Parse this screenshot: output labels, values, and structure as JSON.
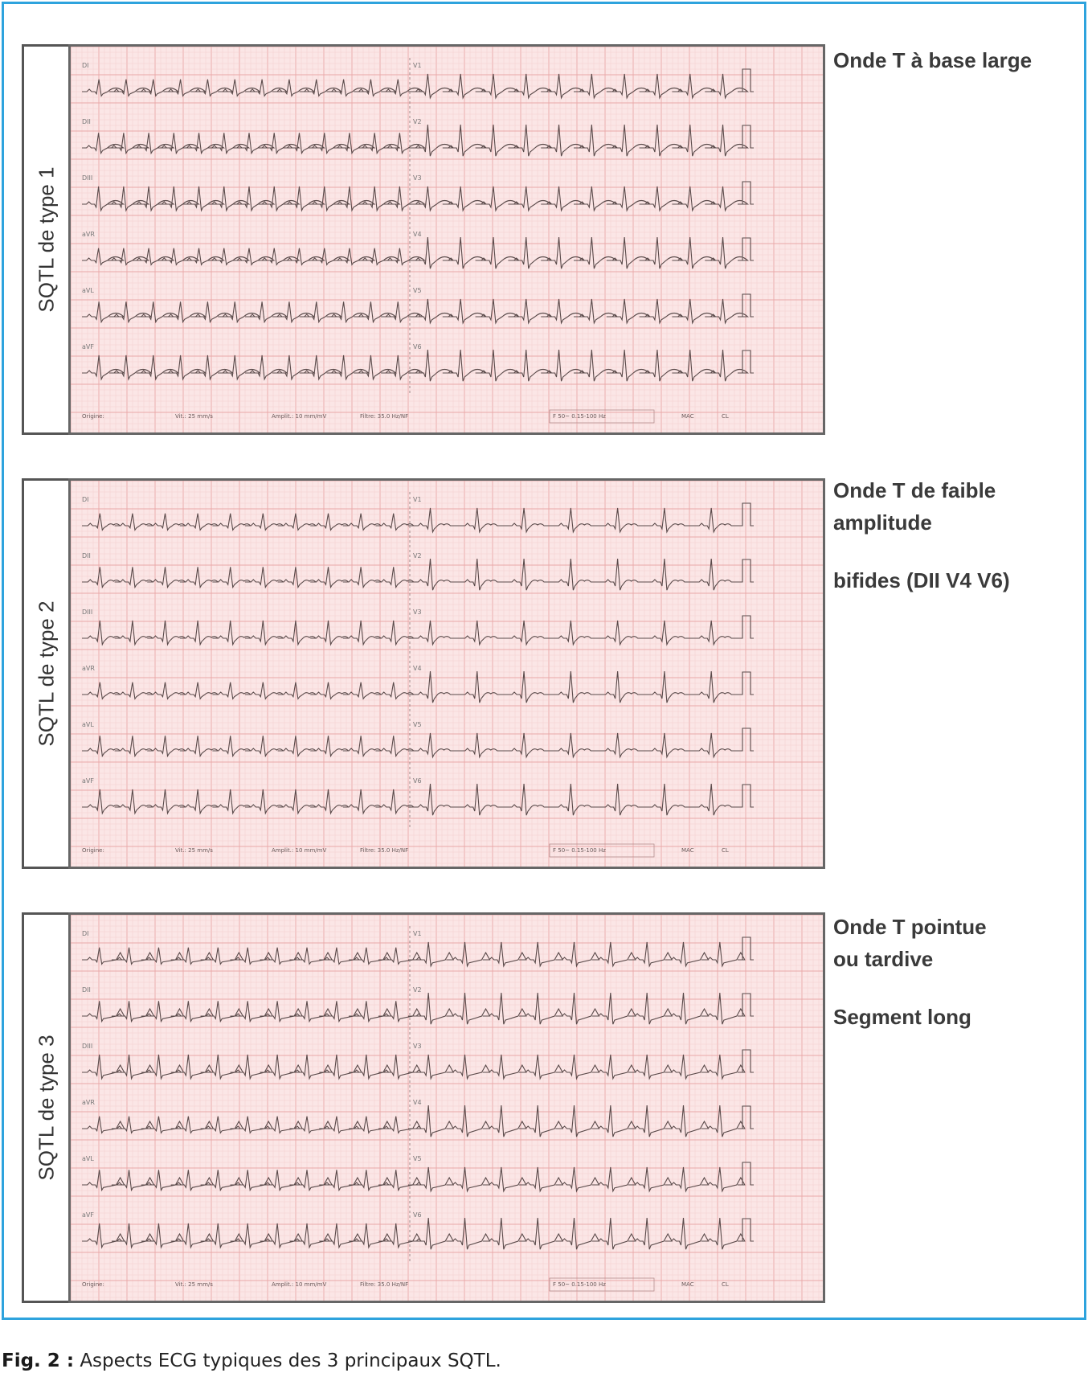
{
  "panels": [
    {
      "label": "SQTL de type 1",
      "notes": [
        "Onde T à base large"
      ],
      "leads_left": [
        "DI",
        "DII",
        "DIII",
        "aVR",
        "aVL",
        "aVF"
      ],
      "leads_right": [
        "V1",
        "V2",
        "V3",
        "V4",
        "V5",
        "V6"
      ],
      "footer": [
        "Origine:",
        "Vit.: 25 mm/s",
        "Amplit.: 10 mm/mV",
        "Filtre: 35.0 Hz/NF",
        "F 50~ 0.15-100 Hz",
        "MAC",
        "CL"
      ]
    },
    {
      "label": "SQTL de type 2",
      "notes": [
        "Onde T de faible amplitude",
        "bifides (DII V4 V6)"
      ],
      "leads_left": [
        "DI",
        "DII",
        "DIII",
        "aVR",
        "aVL",
        "aVF"
      ],
      "leads_right": [
        "V1",
        "V2",
        "V3",
        "V4",
        "V5",
        "V6"
      ],
      "footer": [
        "Origine:",
        "Vit.: 25 mm/s",
        "Amplit.: 10 mm/mV",
        "Filtre: 35.0 Hz/NF",
        "F 50~ 0.15-100 Hz",
        "MAC",
        "CL"
      ]
    },
    {
      "label": "SQTL de type 3",
      "notes": [
        "Onde T pointue ou tardive",
        "Segment long"
      ],
      "leads_left": [
        "DI",
        "DII",
        "DIII",
        "aVR",
        "aVL",
        "aVF"
      ],
      "leads_right": [
        "V1",
        "V2",
        "V3",
        "V4",
        "V5",
        "V6"
      ],
      "footer": [
        "Origine:",
        "Vit.: 25 mm/s",
        "Amplit.: 10 mm/mV",
        "Filtre: 35.0 Hz/NF",
        "F 50~ 0.15-100 Hz",
        "MAC",
        "CL"
      ]
    }
  ],
  "caption": {
    "label": "Fig. 2 :",
    "text": "Aspects ECG typiques des 3 principaux SQTL."
  },
  "colors": {
    "frame": "#2ea3dd",
    "paper": "#fbe6e6",
    "grid_minor": "#f3c9c9",
    "grid_major": "#e9a8a8",
    "trace": "#5a4a4a"
  }
}
